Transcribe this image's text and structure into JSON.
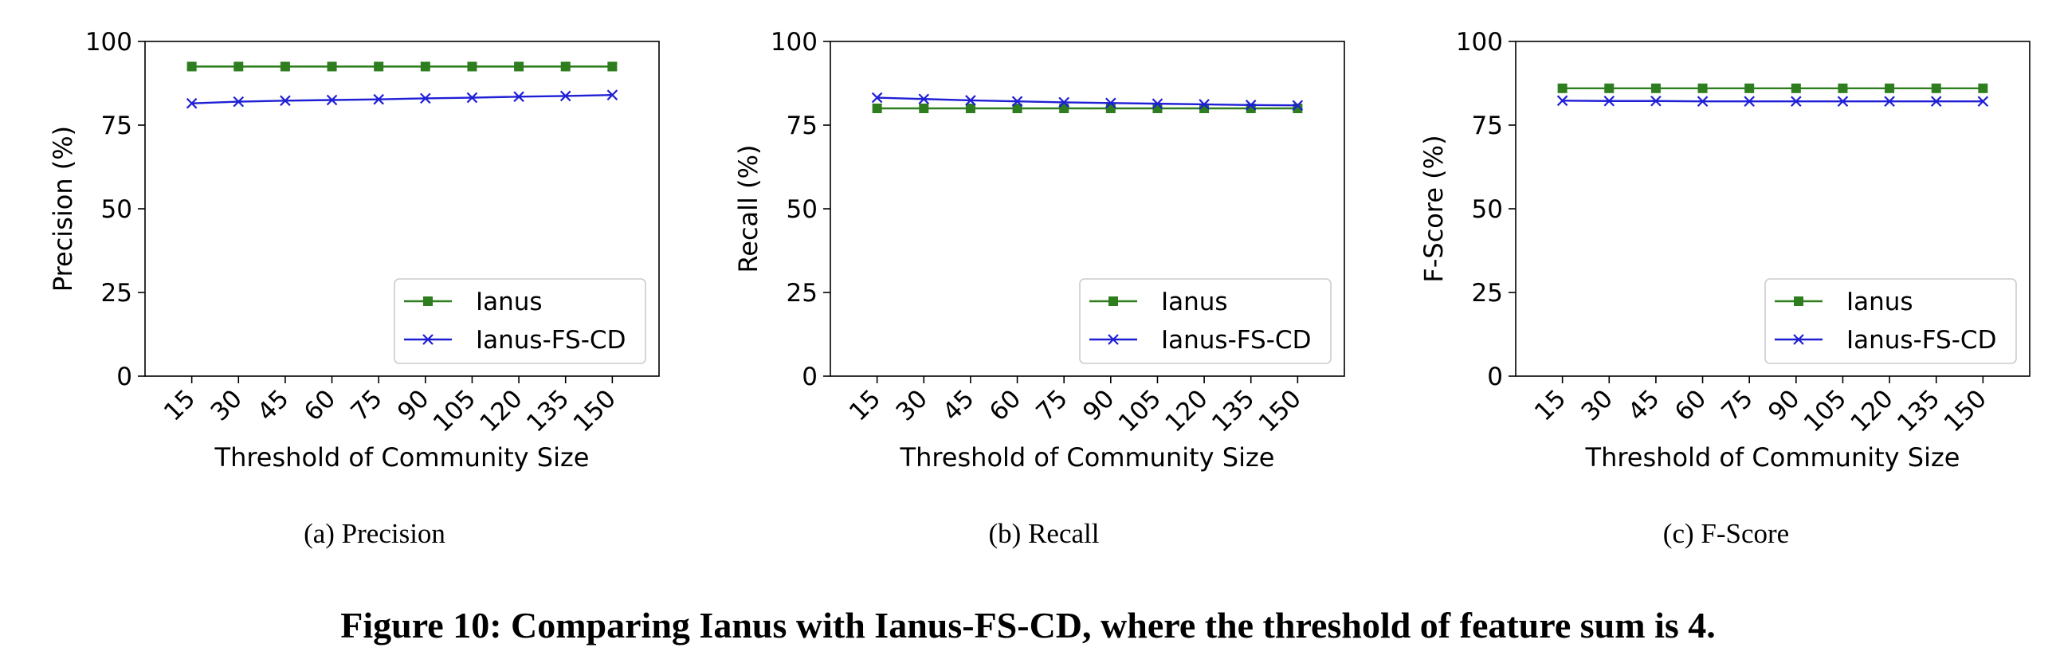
{
  "figure_caption": "Figure 10: Comparing Ianus with Ianus-FS-CD, where the threshold of feature sum is 4.",
  "colors": {
    "ianus": "#2e7d1f",
    "ianus_fs_cd": "#1f1fd6"
  },
  "chart_data": [
    {
      "type": "line",
      "subcaption": "(a)  Precision",
      "xlabel": "Threshold of Community Size",
      "ylabel": "Precision (%)",
      "categories": [
        "15",
        "30",
        "45",
        "60",
        "75",
        "90",
        "105",
        "120",
        "135",
        "150"
      ],
      "yticks": [
        "0",
        "25",
        "50",
        "75",
        "100"
      ],
      "ylim": [
        0,
        100
      ],
      "legend_position": "lower-right",
      "grid": false,
      "series": [
        {
          "name": "Ianus",
          "marker": "square",
          "values": [
            92.5,
            92.5,
            92.5,
            92.5,
            92.5,
            92.5,
            92.5,
            92.5,
            92.5,
            92.5
          ]
        },
        {
          "name": "Ianus-FS-CD",
          "marker": "x",
          "values": [
            81.5,
            82,
            82.3,
            82.5,
            82.7,
            83,
            83.2,
            83.5,
            83.7,
            84
          ]
        }
      ]
    },
    {
      "type": "line",
      "subcaption": "(b)  Recall",
      "xlabel": "Threshold of Community Size",
      "ylabel": "Recall (%)",
      "categories": [
        "15",
        "30",
        "45",
        "60",
        "75",
        "90",
        "105",
        "120",
        "135",
        "150"
      ],
      "yticks": [
        "0",
        "25",
        "50",
        "75",
        "100"
      ],
      "ylim": [
        0,
        100
      ],
      "legend_position": "lower-right",
      "grid": false,
      "series": [
        {
          "name": "Ianus",
          "marker": "square",
          "values": [
            80,
            80,
            80,
            80,
            80,
            80,
            80,
            80,
            80,
            80
          ]
        },
        {
          "name": "Ianus-FS-CD",
          "marker": "x",
          "values": [
            83.2,
            82.8,
            82.4,
            82.1,
            81.8,
            81.6,
            81.4,
            81.2,
            81,
            80.9
          ]
        }
      ]
    },
    {
      "type": "line",
      "subcaption": "(c)  F-Score",
      "xlabel": "Threshold of Community Size",
      "ylabel": "F-Score (%)",
      "categories": [
        "15",
        "30",
        "45",
        "60",
        "75",
        "90",
        "105",
        "120",
        "135",
        "150"
      ],
      "yticks": [
        "0",
        "25",
        "50",
        "75",
        "100"
      ],
      "ylim": [
        0,
        100
      ],
      "legend_position": "lower-right",
      "grid": false,
      "series": [
        {
          "name": "Ianus",
          "marker": "square",
          "values": [
            86,
            86,
            86,
            86,
            86,
            86,
            86,
            86,
            86,
            86
          ]
        },
        {
          "name": "Ianus-FS-CD",
          "marker": "x",
          "values": [
            82.3,
            82.2,
            82.2,
            82.1,
            82.1,
            82.1,
            82.1,
            82.1,
            82.1,
            82.1
          ]
        }
      ]
    }
  ]
}
